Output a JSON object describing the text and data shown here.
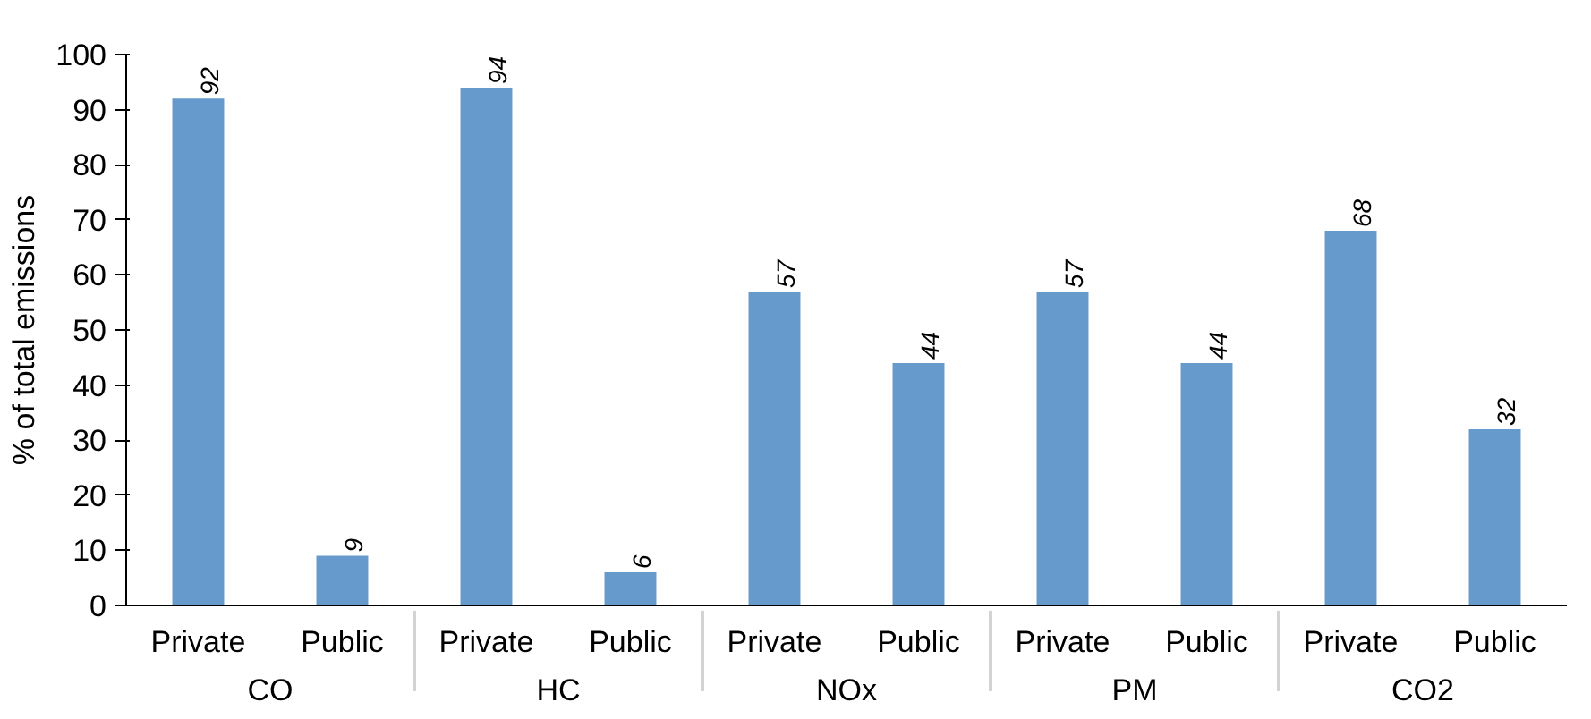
{
  "chart_data": {
    "type": "bar",
    "ylabel": "% of total emissions",
    "categories": [
      "Private",
      "Public",
      "Private",
      "Public",
      "Private",
      "Public",
      "Private",
      "Public",
      "Private",
      "Public"
    ],
    "annotations": [
      "CO",
      "HC",
      "NOx",
      "PM",
      "CO2"
    ],
    "values": [
      92,
      9,
      94,
      6,
      57,
      44,
      57,
      44,
      68,
      32
    ],
    "color": "#6699cc",
    "ylim": [
      0,
      100
    ],
    "yticks": [
      0,
      10,
      20,
      30,
      40,
      50,
      60,
      70,
      80,
      90,
      100
    ],
    "data_labels": true
  }
}
